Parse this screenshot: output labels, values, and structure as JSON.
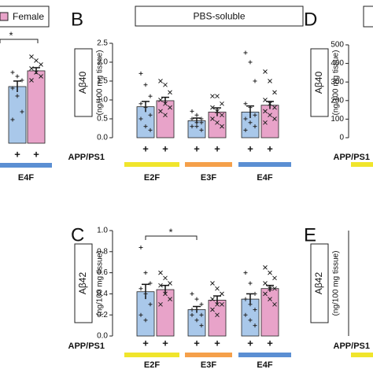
{
  "chart_data": [
    {
      "type": "bar",
      "categories": [
        "E4F"
      ],
      "category_colors": [
        "#5b8fd3"
      ],
      "genotype": "+",
      "significance": [
        {
          "label": "*"
        }
      ],
      "series": [
        {
          "color": "#a9c8ea",
          "marker": "plus",
          "values": [
            0.72
          ],
          "errors": [
            0.07
          ],
          "points": [
            [
              0.9,
              0.85,
              0.8,
              0.7,
              0.6,
              0.4,
              0.3
            ]
          ]
        },
        {
          "name": "Female",
          "color": "#e8a3c9",
          "marker": "cross",
          "values": [
            0.92
          ],
          "errors": [
            0.04
          ],
          "points": [
            [
              1.1,
              1.05,
              1.0,
              0.95,
              0.9,
              0.85,
              0.8
            ]
          ]
        }
      ]
    },
    {
      "type": "bar",
      "panel": "B",
      "title": "PBS-soluble",
      "ylabel": "Aβ40",
      "yunit": "(ng/100 mg tissue)",
      "ylim": [
        0,
        2.5
      ],
      "yticks": [
        {
          "value": 0,
          "label": "0.0"
        },
        0.5,
        {
          "value": 1,
          "label": "1.0"
        },
        1.5,
        {
          "value": 2,
          "label": "2.0"
        },
        2.5
      ],
      "row_label": "APP/PS1",
      "genotype": "+",
      "categories": [
        "E2F",
        "E3F",
        "E4F"
      ],
      "category_colors": [
        "#f0e52c",
        "#f5a04a",
        "#5b8fd3"
      ],
      "series": [
        {
          "color": "#a9c8ea",
          "marker": "plus",
          "values": [
            0.82,
            0.45,
            0.68
          ],
          "errors": [
            0.14,
            0.07,
            0.16
          ],
          "points": [
            [
              1.7,
              1.4,
              1.1,
              0.9,
              0.8,
              0.6,
              0.5,
              0.3,
              0.2
            ],
            [
              0.7,
              0.6,
              0.5,
              0.5,
              0.4,
              0.4,
              0.3,
              0.3,
              0.2
            ],
            [
              2.25,
              2.0,
              1.5,
              0.9,
              0.8,
              0.6,
              0.5,
              0.4,
              0.3,
              0.2
            ]
          ]
        },
        {
          "color": "#e8a3c9",
          "marker": "cross",
          "values": [
            0.98,
            0.68,
            0.86
          ],
          "errors": [
            0.09,
            0.11,
            0.1
          ],
          "points": [
            [
              1.5,
              1.4,
              1.2,
              1.0,
              0.9,
              0.8,
              0.7,
              0.6
            ],
            [
              1.1,
              1.1,
              0.9,
              0.8,
              0.7,
              0.6,
              0.5,
              0.4,
              0.3
            ],
            [
              1.75,
              1.5,
              1.2,
              1.0,
              0.9,
              0.8,
              0.7,
              0.6,
              0.5,
              0.4
            ]
          ]
        }
      ]
    },
    {
      "type": "bar",
      "panel": "C",
      "ylabel": "Aβ42",
      "yunit": "(ng/100 mg tissue)",
      "ylim": [
        0,
        1
      ],
      "yticks": [
        {
          "value": 0,
          "label": "0.0"
        },
        0.2,
        0.4,
        0.6,
        0.8,
        {
          "value": 1,
          "label": "1.0"
        }
      ],
      "row_label": "APP/PS1",
      "genotype": "+",
      "categories": [
        "E2F",
        "E3F",
        "E4F"
      ],
      "category_colors": [
        "#f0e52c",
        "#f5a04a",
        "#5b8fd3"
      ],
      "significance": [
        {
          "label": "*"
        }
      ],
      "series": [
        {
          "color": "#a9c8ea",
          "marker": "plus",
          "values": [
            0.42,
            0.25,
            0.35
          ],
          "errors": [
            0.07,
            0.03,
            0.05
          ],
          "points": [
            [
              0.84,
              0.6,
              0.5,
              0.45,
              0.4,
              0.3,
              0.2,
              0.15
            ],
            [
              0.4,
              0.35,
              0.3,
              0.25,
              0.25,
              0.2,
              0.2,
              0.15,
              0.1
            ],
            [
              0.6,
              0.5,
              0.4,
              0.35,
              0.3,
              0.25,
              0.2,
              0.15,
              0.1
            ]
          ]
        },
        {
          "color": "#e8a3c9",
          "marker": "cross",
          "values": [
            0.44,
            0.34,
            0.45
          ],
          "errors": [
            0.04,
            0.04,
            0.03
          ],
          "points": [
            [
              0.6,
              0.55,
              0.5,
              0.48,
              0.4,
              0.35,
              0.3
            ],
            [
              0.5,
              0.45,
              0.4,
              0.35,
              0.3,
              0.3,
              0.25,
              0.2
            ],
            [
              0.65,
              0.6,
              0.55,
              0.5,
              0.45,
              0.45,
              0.4,
              0.35,
              0.3
            ]
          ]
        }
      ]
    },
    {
      "type": "bar",
      "panel": "D",
      "ylabel": "Aβ40",
      "yunit": "(ng/100 mg tissue)",
      "ylim": [
        0,
        500
      ],
      "yticks": [
        0,
        100,
        200,
        300,
        400,
        500
      ],
      "row_label": "APP/PS1",
      "categories": [
        null
      ],
      "category_colors": [
        "#f0e52c"
      ],
      "series": []
    },
    {
      "type": "bar",
      "panel": "E",
      "ylabel": "Aβ42",
      "yunit": "(ng/100 mg tissue)",
      "row_label": "APP/PS1",
      "categories": [
        null
      ],
      "category_colors": [
        "#f0e52c"
      ],
      "series": []
    }
  ]
}
